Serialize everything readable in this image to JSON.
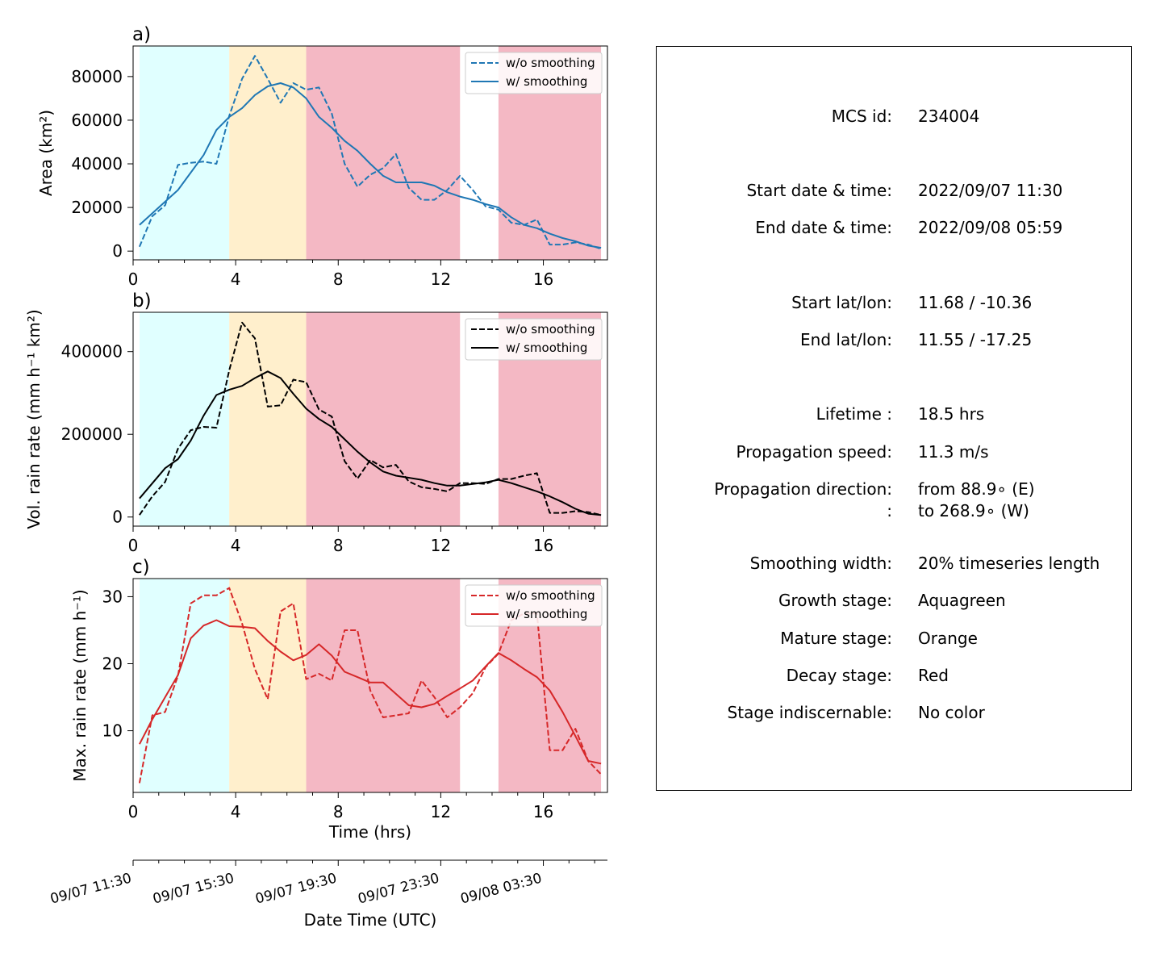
{
  "stage_colors": {
    "growth": "#e0ffff",
    "mature": "#ffefcc",
    "decay": "#f4b8c4"
  },
  "stage_bands": [
    {
      "stage": "growth",
      "start": 0.25,
      "end": 3.75
    },
    {
      "stage": "mature",
      "start": 3.75,
      "end": 6.75
    },
    {
      "stage": "decay",
      "start": 6.75,
      "end": 12.75
    },
    {
      "stage": "decay",
      "start": 14.25,
      "end": 18.25
    }
  ],
  "chart_data": [
    {
      "type": "line",
      "panel_label": "a)",
      "ylabel": "Area  (km²)",
      "color": "#1f77b4",
      "xlim": [
        0,
        18.5
      ],
      "ylim": [
        -4000,
        94000
      ],
      "xticks": [
        0,
        4,
        8,
        12,
        16
      ],
      "yticks": [
        0,
        20000,
        40000,
        60000,
        80000
      ],
      "legend": {
        "position": "top-right",
        "entries": [
          "w/o smoothing",
          "w/ smoothing"
        ]
      },
      "series": [
        {
          "name": "w/o smoothing",
          "style": "dashed",
          "x": [
            0.25,
            0.75,
            1.25,
            1.75,
            2.25,
            2.75,
            3.25,
            3.75,
            4.25,
            4.75,
            5.25,
            5.75,
            6.25,
            6.75,
            7.25,
            7.75,
            8.25,
            8.75,
            9.25,
            9.75,
            10.25,
            10.75,
            11.25,
            11.75,
            12.25,
            12.75,
            13.25,
            13.75,
            14.25,
            14.75,
            15.25,
            15.75,
            16.25,
            16.75,
            17.25,
            17.75,
            18.25
          ],
          "y": [
            2000,
            16000,
            21000,
            39500,
            40500,
            41000,
            40000,
            62000,
            79000,
            89500,
            79000,
            68000,
            77000,
            74000,
            75000,
            63000,
            40000,
            29500,
            35000,
            38000,
            44500,
            29000,
            23500,
            23500,
            28000,
            34500,
            28000,
            20500,
            19000,
            13000,
            12000,
            14500,
            3000,
            3000,
            4000,
            3000,
            1000
          ]
        },
        {
          "name": "w/ smoothing",
          "style": "solid",
          "x": [
            0.25,
            1.75,
            2.75,
            3.25,
            3.75,
            4.25,
            4.75,
            5.25,
            5.75,
            6.25,
            6.75,
            7.25,
            7.75,
            8.25,
            8.75,
            9.25,
            9.75,
            10.25,
            10.75,
            11.25,
            11.75,
            12.25,
            12.75,
            13.25,
            13.75,
            14.25,
            14.75,
            15.25,
            15.75,
            16.25,
            16.75,
            17.25,
            17.75,
            18.25
          ],
          "y": [
            12000,
            28000,
            44000,
            55500,
            61500,
            65500,
            71500,
            75500,
            77000,
            75000,
            70000,
            61500,
            56500,
            50500,
            46000,
            40000,
            34500,
            31500,
            31500,
            31500,
            30000,
            27000,
            25000,
            23500,
            21500,
            20000,
            15500,
            12000,
            10500,
            8000,
            6000,
            4500,
            2500,
            1500
          ]
        }
      ]
    },
    {
      "type": "line",
      "panel_label": "b)",
      "ylabel": "Vol. rain rate (mm h⁻¹ km²)",
      "color": "#000000",
      "xlim": [
        0,
        18.5
      ],
      "ylim": [
        -22000,
        495000
      ],
      "xticks": [
        0,
        4,
        8,
        12,
        16
      ],
      "yticks": [
        0,
        200000,
        400000
      ],
      "legend": {
        "position": "top-right",
        "entries": [
          "w/o smoothing",
          "w/ smoothing"
        ]
      },
      "series": [
        {
          "name": "w/o smoothing",
          "style": "dashed",
          "x": [
            0.25,
            0.75,
            1.25,
            1.75,
            2.25,
            2.75,
            3.25,
            3.75,
            4.25,
            4.75,
            5.25,
            5.75,
            6.25,
            6.75,
            7.25,
            7.75,
            8.25,
            8.75,
            9.25,
            9.75,
            10.25,
            10.75,
            11.25,
            11.75,
            12.25,
            12.75,
            13.25,
            13.75,
            14.25,
            14.75,
            15.25,
            15.75,
            16.25,
            16.75,
            17.25,
            17.75,
            18.25
          ],
          "y": [
            5000,
            50000,
            85000,
            165000,
            210000,
            218000,
            216000,
            355000,
            470000,
            432000,
            267000,
            270000,
            332000,
            326000,
            260000,
            243000,
            135000,
            93000,
            138000,
            120000,
            126000,
            86000,
            72000,
            68000,
            62000,
            82000,
            82000,
            80000,
            92000,
            92000,
            100000,
            106000,
            10000,
            10000,
            14000,
            12000,
            5000
          ]
        },
        {
          "name": "w/ smoothing",
          "style": "solid",
          "x": [
            0.25,
            1.25,
            1.75,
            2.25,
            2.75,
            3.25,
            3.75,
            4.25,
            4.75,
            5.25,
            5.75,
            6.25,
            6.75,
            7.25,
            7.75,
            8.25,
            8.75,
            9.25,
            9.75,
            10.25,
            10.75,
            11.25,
            11.75,
            12.25,
            12.75,
            13.25,
            13.75,
            14.25,
            14.75,
            15.25,
            15.75,
            16.25,
            16.75,
            17.25,
            17.75,
            18.25
          ],
          "y": [
            45000,
            118000,
            140000,
            185000,
            245000,
            295000,
            308000,
            317000,
            336000,
            352000,
            336000,
            298000,
            262000,
            237000,
            218000,
            188000,
            158000,
            132000,
            110000,
            100000,
            95000,
            90000,
            82000,
            76000,
            76000,
            80000,
            84000,
            90000,
            82000,
            72000,
            62000,
            50000,
            36000,
            20000,
            8000,
            5000
          ]
        }
      ]
    },
    {
      "type": "line",
      "panel_label": "c)",
      "ylabel": "Max. rain rate  (mm h⁻¹)",
      "color": "#d62728",
      "xlim": [
        0,
        18.5
      ],
      "ylim": [
        0.8,
        32.7
      ],
      "xticks": [
        0,
        4,
        8,
        12,
        16
      ],
      "yticks": [
        10,
        20,
        30
      ],
      "xlabel": "Time (hrs)",
      "legend": {
        "position": "top-right",
        "entries": [
          "w/o smoothing",
          "w/ smoothing"
        ]
      },
      "series": [
        {
          "name": "w/o smoothing",
          "style": "dashed",
          "x": [
            0.25,
            0.75,
            1.25,
            1.75,
            2.25,
            2.75,
            3.25,
            3.75,
            4.25,
            4.75,
            5.25,
            5.75,
            6.25,
            6.75,
            7.25,
            7.75,
            8.25,
            8.75,
            9.25,
            9.75,
            10.25,
            10.75,
            11.25,
            11.75,
            12.25,
            12.75,
            13.25,
            13.75,
            14.25,
            14.75,
            15.25,
            15.75,
            16.25,
            16.75,
            17.25,
            17.75,
            18.25
          ],
          "y": [
            2.2,
            12.3,
            12.8,
            18.2,
            29.0,
            30.2,
            30.2,
            31.3,
            26.0,
            19.2,
            14.7,
            27.8,
            29.0,
            17.7,
            18.5,
            17.5,
            25.0,
            25.0,
            16.0,
            12.0,
            12.3,
            12.6,
            17.5,
            15.0,
            12.0,
            13.5,
            15.6,
            19.5,
            21.5,
            26.5,
            27.5,
            27.5,
            7.1,
            7.1,
            10.3,
            5.5,
            3.5
          ]
        },
        {
          "name": "w/ smoothing",
          "style": "solid",
          "x": [
            0.25,
            0.75,
            1.25,
            1.75,
            2.25,
            2.75,
            3.25,
            3.75,
            4.25,
            4.75,
            5.25,
            5.75,
            6.25,
            6.75,
            7.25,
            7.75,
            8.25,
            8.75,
            9.25,
            9.75,
            10.25,
            10.75,
            11.25,
            11.75,
            12.25,
            12.75,
            13.25,
            13.75,
            14.25,
            14.75,
            15.25,
            15.75,
            16.25,
            16.75,
            17.25,
            17.75,
            18.25
          ],
          "y": [
            8.0,
            11.7,
            15.0,
            18.3,
            23.8,
            25.7,
            26.5,
            25.6,
            25.5,
            25.3,
            23.4,
            21.8,
            20.5,
            21.3,
            22.9,
            21.2,
            18.8,
            18.0,
            17.2,
            17.2,
            15.5,
            13.8,
            13.5,
            14.0,
            15.2,
            16.3,
            17.5,
            19.6,
            21.6,
            20.5,
            19.2,
            18.0,
            16.0,
            12.8,
            9.2,
            5.5,
            5.1
          ]
        }
      ]
    }
  ],
  "date_axis": {
    "xlabel": "Date Time (UTC)",
    "ticks": [
      {
        "x": 0,
        "label": "09/07 11:30"
      },
      {
        "x": 4,
        "label": "09/07 15:30"
      },
      {
        "x": 8,
        "label": "09/07 19:30"
      },
      {
        "x": 12,
        "label": "09/07 23:30"
      },
      {
        "x": 16,
        "label": "09/08 03:30"
      }
    ]
  },
  "info": {
    "mcs_id_label": "MCS id:",
    "mcs_id": "234004",
    "start_time_label": "Start date & time:",
    "start_time": "2022/09/07 11:30",
    "end_time_label": "End date & time:",
    "end_time": "2022/09/08 05:59",
    "start_latlon_label": "Start lat/lon:",
    "start_latlon": "11.68 / -10.36",
    "end_latlon_label": "End lat/lon:",
    "end_latlon": "11.55 / -17.25",
    "lifetime_label": "Lifetime :",
    "lifetime": "18.5 hrs",
    "speed_label": "Propagation speed:",
    "speed": "11.3 m/s",
    "direction_label": "Propagation direction:",
    "direction_from": "from  88.9∘ (E)",
    "direction_to_label": ":",
    "direction_to": "to   268.9∘ (W)",
    "smoothing_label": "Smoothing width:",
    "smoothing": "20% timeseries length",
    "growth_label": "Growth stage:",
    "growth": "Aquagreen",
    "mature_label": "Mature stage:",
    "mature": "Orange",
    "decay_label": "Decay stage:",
    "decay": "Red",
    "indisc_label": "Stage indiscernable:",
    "indisc": "No color"
  }
}
